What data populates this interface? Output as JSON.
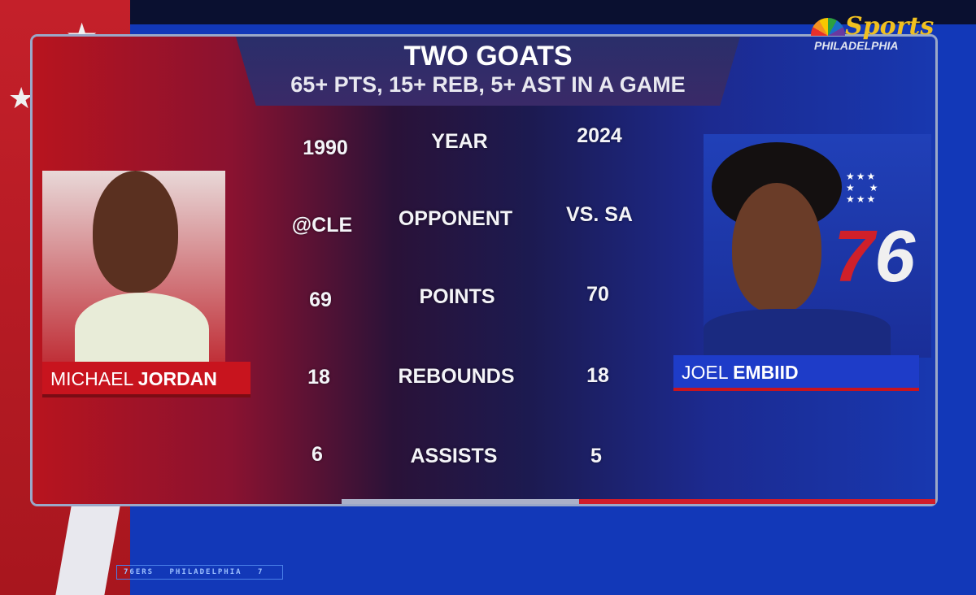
{
  "header": {
    "title": "TWO GOATS",
    "subtitle": "65+ PTS, 15+ REB, 5+ AST IN A GAME"
  },
  "network_logo": {
    "brand": "Sports",
    "region": "PHILADELPHIA"
  },
  "players": {
    "left": {
      "first": "MICHAEL",
      "last": "JORDAN",
      "team_logo": "chicago-bulls-logo",
      "color": "#c8141e"
    },
    "right": {
      "first": "JOEL",
      "last": "EMBIID",
      "team_logo": "philadelphia-76ers-logo",
      "team_logo_text": "76",
      "color": "#1e3cc8"
    }
  },
  "stats": [
    {
      "label": "YEAR",
      "left": "1990",
      "right": "2024"
    },
    {
      "label": "OPPONENT",
      "left": "@CLE",
      "right": "VS. SA"
    },
    {
      "label": "POINTS",
      "left": "69",
      "right": "70"
    },
    {
      "label": "REBOUNDS",
      "left": "18",
      "right": "18"
    },
    {
      "label": "ASSISTS",
      "left": "6",
      "right": "5"
    }
  ],
  "ticker": "76ERS PHILADELPHIA 7"
}
